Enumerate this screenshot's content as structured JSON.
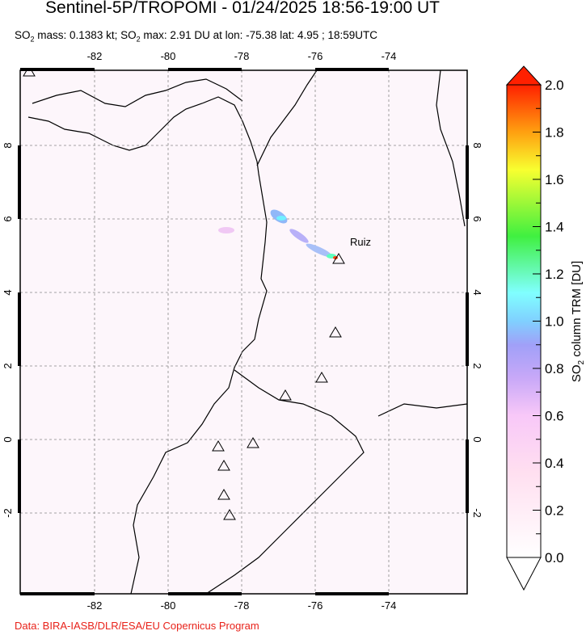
{
  "title": "Sentinel-5P/TROPOMI - 01/24/2025 18:56-19:00 UT",
  "subtitle": {
    "p1": "SO",
    "p2": " mass: 0.1383 kt; SO",
    "p3": " max: 2.91 DU at lon: -75.38 lat: 4.95 ; 18:59UTC",
    "sub": "2"
  },
  "credit": "Data: BIRA-IASB/DLR/ESA/EU Copernicus Program",
  "map": {
    "lon_range": [
      -84,
      -72
    ],
    "lat_range": [
      -4.2,
      10
    ],
    "lon_ticks": [
      "-82",
      "-80",
      "-78",
      "-76",
      "-74"
    ],
    "lat_ticks": [
      "8",
      "6",
      "4",
      "2",
      "0",
      "-2"
    ],
    "volcano_label": "Ruiz",
    "max_location": {
      "lon": -75.38,
      "lat": 4.95
    }
  },
  "colorbar": {
    "label": "SO2 column TRM [DU]",
    "label_main": "SO",
    "label_sub": "2",
    "label_rest": " column TRM [DU]",
    "ticks": [
      "0.0",
      "0.2",
      "0.4",
      "0.6",
      "0.8",
      "1.0",
      "1.2",
      "1.4",
      "1.6",
      "1.8",
      "2.0"
    ],
    "range": [
      0,
      2
    ],
    "colors": [
      "#ffffff",
      "#ffd6f0",
      "#c8a8f8",
      "#8fb0f8",
      "#80ffff",
      "#50f080",
      "#f0ff30",
      "#ff9010",
      "#ff2000"
    ]
  }
}
